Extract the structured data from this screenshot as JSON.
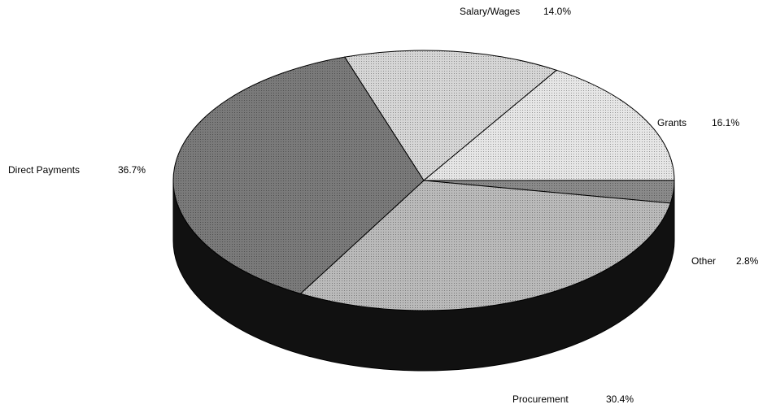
{
  "chart_data": {
    "type": "pie",
    "categories": [
      "Salary/Wages",
      "Grants",
      "Other",
      "Procurement",
      "Direct Payments"
    ],
    "values": [
      14.0,
      16.1,
      2.8,
      30.4,
      36.7
    ],
    "value_labels": [
      "14.0%",
      "16.1%",
      "2.8%",
      "30.4%",
      "36.7%"
    ],
    "colors": [
      "#d6d6d6",
      "#e6e6e6",
      "#8a8a8a",
      "#bababa",
      "#7a7a7a"
    ]
  }
}
